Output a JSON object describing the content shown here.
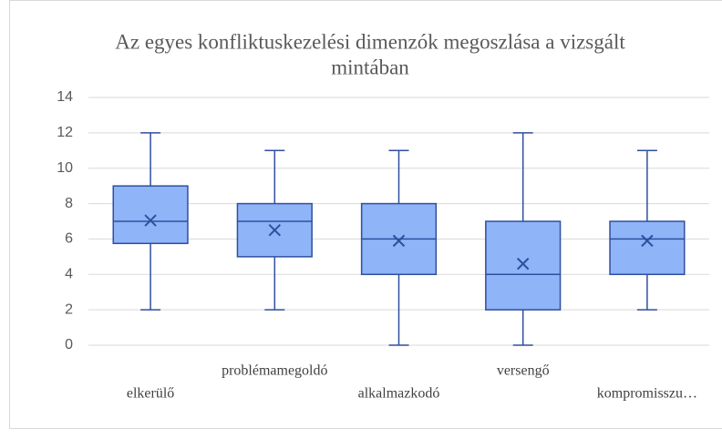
{
  "chart_data": {
    "type": "box",
    "title": [
      "Az egyes konfliktuskezelési dimenzók megoszlása a vizsgált",
      "mintában"
    ],
    "categories": [
      "elkerülő",
      "problémamegoldó",
      "alkalmazkodó",
      "versengő",
      "kompromisszu…"
    ],
    "boxes": [
      {
        "min": 2,
        "q1": 5.75,
        "median": 7,
        "q3": 9,
        "max": 12,
        "mean": 7.05
      },
      {
        "min": 2,
        "q1": 5,
        "median": 7,
        "q3": 8,
        "max": 11,
        "mean": 6.5
      },
      {
        "min": 0,
        "q1": 4,
        "median": 6,
        "q3": 8,
        "max": 11,
        "mean": 5.9
      },
      {
        "min": 0,
        "q1": 2,
        "median": 4,
        "q3": 7,
        "max": 12,
        "mean": 4.6
      },
      {
        "min": 2,
        "q1": 4,
        "median": 6,
        "q3": 7,
        "max": 11,
        "mean": 5.9
      }
    ],
    "color": "#8fb4f7",
    "edge_color": "#2f4f9f",
    "ylim": [
      0,
      14
    ],
    "yticks": [
      0,
      2,
      4,
      6,
      8,
      10,
      12,
      14
    ],
    "grid": true
  }
}
